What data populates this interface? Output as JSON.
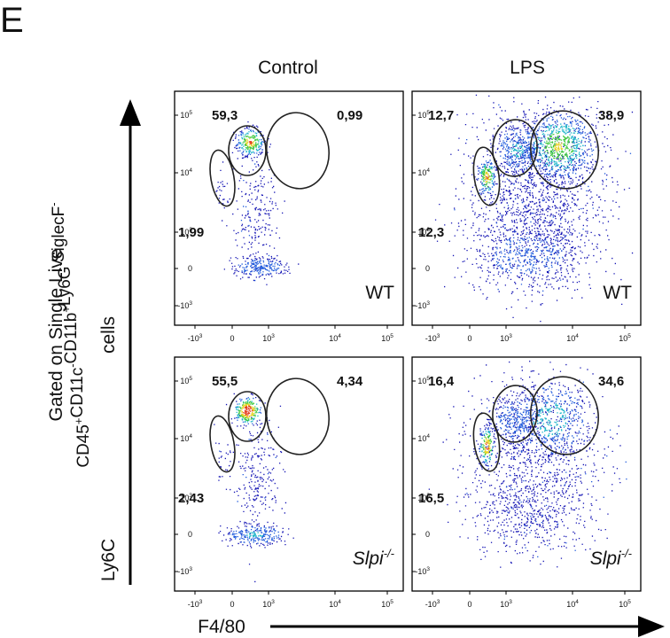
{
  "figure_label": "E",
  "columns": [
    "Control",
    "LPS"
  ],
  "gating_label": {
    "line1": "Gated on Single Live",
    "line2": [
      {
        "text": "CD45",
        "sup": "+"
      },
      {
        "text": "CD11c",
        "sup": "-"
      },
      {
        "text": "CD11b",
        "sup": "+"
      },
      {
        "text": "Ly6G",
        "sup": "-"
      },
      {
        "text": "SiglecF",
        "sup": "-"
      }
    ],
    "line3": "cells"
  },
  "y_axis_label": "Ly6C",
  "x_axis_label": "F4/80",
  "y_ticks": [
    {
      "base": "10",
      "exp": "5"
    },
    {
      "base": "10",
      "exp": "4"
    },
    {
      "base": "10",
      "exp": "3"
    },
    {
      "base": "0"
    },
    {
      "base": "-10",
      "exp": "3"
    }
  ],
  "x_ticks": [
    {
      "base": "-10",
      "exp": "3"
    },
    {
      "base": "0"
    },
    {
      "base": "10",
      "exp": "3"
    },
    {
      "base": "10",
      "exp": "4"
    },
    {
      "base": "10",
      "exp": "5"
    }
  ],
  "panels": [
    {
      "genotype": {
        "text": "WT",
        "italic": false
      },
      "gates": [
        "59,3",
        "0,99",
        "1,99"
      ]
    },
    {
      "genotype": {
        "text": "WT",
        "italic": false
      },
      "gates": [
        "12,7",
        "38,9",
        "12,3"
      ]
    },
    {
      "genotype": {
        "text": "Slpi",
        "sup": "-/-",
        "italic": true
      },
      "gates": [
        "55,5",
        "4,34",
        "2,43"
      ]
    },
    {
      "genotype": {
        "text": "Slpi",
        "sup": "-/-",
        "italic": true
      },
      "gates": [
        "16,4",
        "34,6",
        "16,5"
      ]
    }
  ]
}
